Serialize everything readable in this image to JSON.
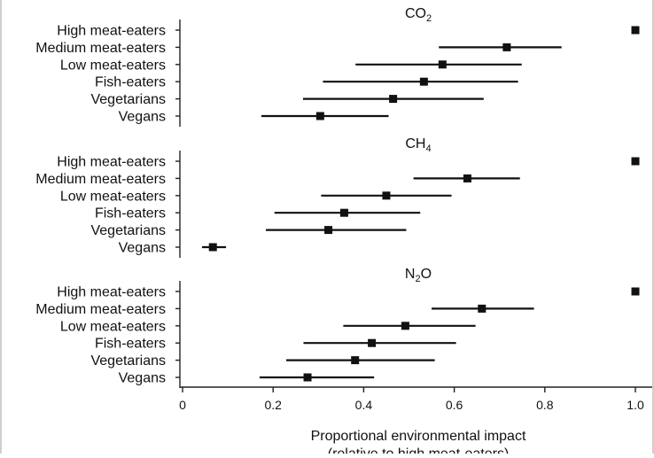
{
  "chart_data": {
    "type": "errorbar",
    "x_axis": {
      "label_line1": "Proportional environmental impact",
      "label_line2": "(relative to high meat-eaters)",
      "ticks": [
        0,
        0.2,
        0.4,
        0.6,
        0.8,
        1.0
      ],
      "tick_labels": [
        "0",
        "0.2",
        "0.4",
        "0.6",
        "0.8",
        "1.0"
      ],
      "xlim": [
        0,
        1.0
      ]
    },
    "categories": [
      "High meat-eaters",
      "Medium meat-eaters",
      "Low meat-eaters",
      "Fish-eaters",
      "Vegetarians",
      "Vegans"
    ],
    "panels": [
      {
        "title_main": "CO",
        "title_sub": "2",
        "points": [
          {
            "value": 1.0,
            "low": 1.0,
            "high": 1.0
          },
          {
            "value": 0.716,
            "low": 0.566,
            "high": 0.837
          },
          {
            "value": 0.574,
            "low": 0.382,
            "high": 0.749
          },
          {
            "value": 0.533,
            "low": 0.31,
            "high": 0.741
          },
          {
            "value": 0.465,
            "low": 0.266,
            "high": 0.665
          },
          {
            "value": 0.304,
            "low": 0.174,
            "high": 0.455
          }
        ]
      },
      {
        "title_main": "CH",
        "title_sub": "4",
        "points": [
          {
            "value": 1.0,
            "low": 1.0,
            "high": 1.0
          },
          {
            "value": 0.629,
            "low": 0.51,
            "high": 0.745
          },
          {
            "value": 0.45,
            "low": 0.306,
            "high": 0.594
          },
          {
            "value": 0.357,
            "low": 0.203,
            "high": 0.525
          },
          {
            "value": 0.322,
            "low": 0.184,
            "high": 0.494
          },
          {
            "value": 0.067,
            "low": 0.043,
            "high": 0.096
          }
        ]
      },
      {
        "title_main": "N",
        "title_sub": "2",
        "title_tail": "O",
        "points": [
          {
            "value": 1.0,
            "low": 1.0,
            "high": 1.0
          },
          {
            "value": 0.661,
            "low": 0.55,
            "high": 0.776
          },
          {
            "value": 0.492,
            "low": 0.355,
            "high": 0.647
          },
          {
            "value": 0.418,
            "low": 0.267,
            "high": 0.604
          },
          {
            "value": 0.381,
            "low": 0.229,
            "high": 0.557
          },
          {
            "value": 0.276,
            "low": 0.17,
            "high": 0.423
          }
        ]
      }
    ]
  }
}
